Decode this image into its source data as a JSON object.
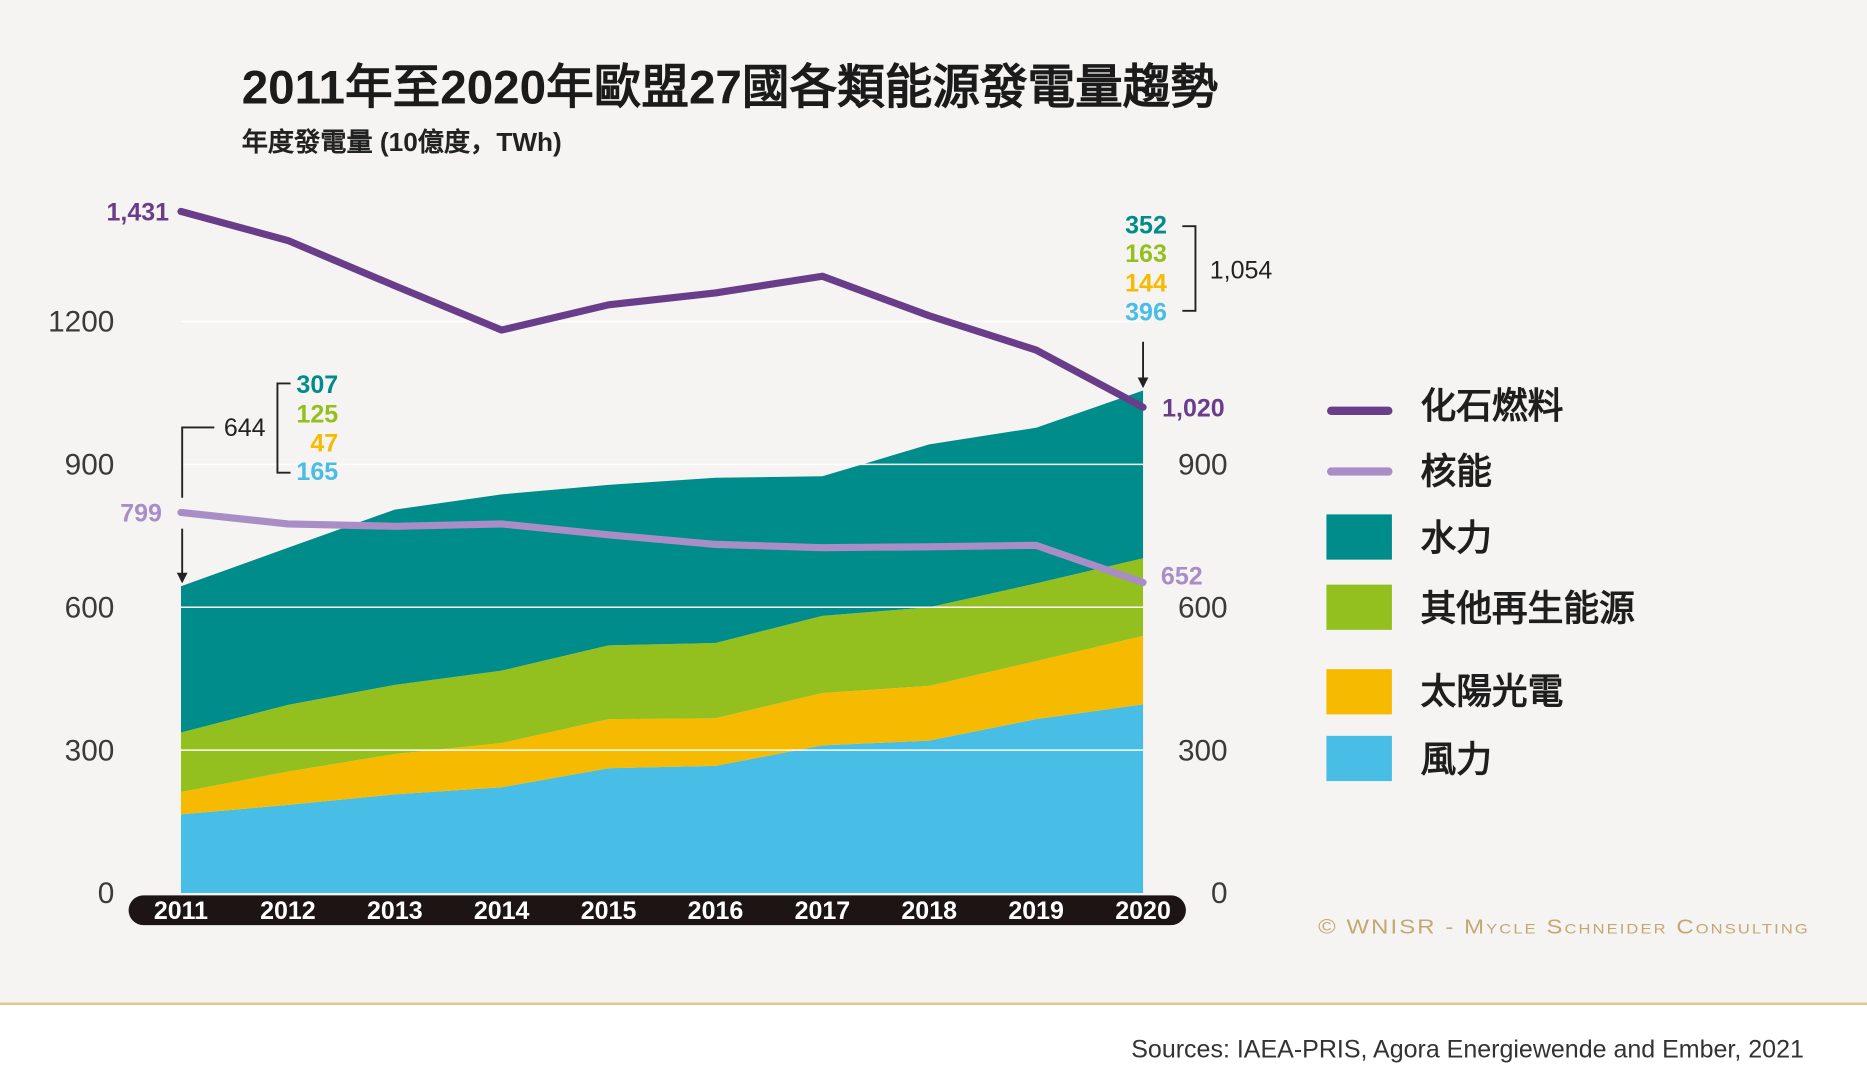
{
  "chart_data": {
    "type": "area",
    "stacked": true,
    "title": "2011年至2020年歐盟27國各類能源發電量趨勢",
    "subtitle": "年度發電量 (10億度，TWh)",
    "x": [
      "2011",
      "2012",
      "2013",
      "2014",
      "2015",
      "2016",
      "2017",
      "2018",
      "2019",
      "2020"
    ],
    "ylim": [
      0,
      1500
    ],
    "yticks_left": [
      0,
      300,
      600,
      900,
      1200
    ],
    "yticks_right": [
      0,
      300,
      600,
      900
    ],
    "grid": true,
    "legend_position": "right",
    "series": [
      {
        "name": "化石燃料",
        "kind": "line",
        "color": "#6a3d8b",
        "values": [
          1431,
          1370,
          1275,
          1182,
          1235,
          1260,
          1295,
          1212,
          1140,
          1020
        ]
      },
      {
        "name": "核能",
        "kind": "line",
        "color": "#a88dc7",
        "values": [
          799,
          775,
          770,
          775,
          752,
          732,
          725,
          727,
          730,
          652
        ]
      },
      {
        "name": "水力",
        "kind": "area",
        "color": "#008c8a",
        "values": [
          307,
          330,
          368,
          370,
          337,
          347,
          293,
          342,
          327,
          352
        ]
      },
      {
        "name": "其他再生能源",
        "kind": "area",
        "color": "#93c01f",
        "values": [
          125,
          140,
          145,
          152,
          155,
          158,
          162,
          165,
          163,
          163
        ]
      },
      {
        "name": "太陽光電",
        "kind": "area",
        "color": "#f6bb00",
        "values": [
          47,
          70,
          85,
          93,
          103,
          100,
          110,
          115,
          122,
          144
        ]
      },
      {
        "name": "風力",
        "kind": "area",
        "color": "#48bde5",
        "values": [
          165,
          185,
          207,
          222,
          262,
          267,
          310,
          320,
          365,
          396
        ]
      }
    ],
    "annotations": {
      "2011": {
        "fossil": "1,431",
        "nuclear": "799",
        "renewables_total": "644",
        "hydro": "307",
        "other_renewables": "125",
        "solar": "47",
        "wind": "165"
      },
      "2020": {
        "fossil": "1,020",
        "nuclear": "652",
        "renewables_total": "1,054",
        "hydro": "352",
        "other_renewables": "163",
        "solar": "144",
        "wind": "396"
      }
    }
  },
  "copyright": "© WNISR - Mycle Schneider Consulting",
  "source": "Sources: IAEA-PRIS, Agora Energiewende and Ember, 2021"
}
